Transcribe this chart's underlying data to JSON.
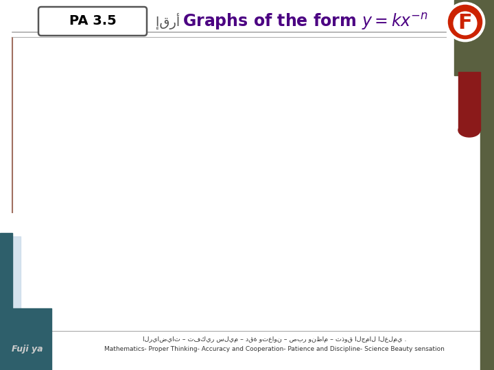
{
  "pa_label": "PA 3.5",
  "footer_arabic": "الرياضيات – تفكير سليم – دقة وتعاون – صبر ونظام – تذوق الجمال العلمي .",
  "footer_english": "Mathematics- Proper Thinking- Accuracy and Cooperation- Patience and Discipline- Science Beauty sensation",
  "bg_color": "#ffffff",
  "title_color": "#4b0082",
  "pa_box_edge": "#555555",
  "pa_text_color": "#000000",
  "line_color": "#aaaaaa",
  "teal_color": "#2e5f6b",
  "dark_olive": "#5a6040",
  "red_color": "#cc2200",
  "dark_red": "#8b1a1a",
  "light_blue": "#c5d8e8",
  "footer_text_color": "#333333",
  "signature": "Fuji ya"
}
